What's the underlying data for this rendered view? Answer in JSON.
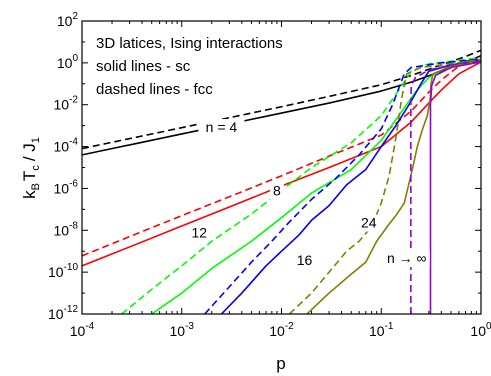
{
  "chart_data": {
    "type": "line",
    "xscale": "log",
    "yscale": "log",
    "xlim": [
      0.0001,
      1
    ],
    "ylim": [
      1e-12,
      100
    ],
    "xlabel": "p",
    "ylabel": {
      "k": "k",
      "B": "B",
      "T": "T",
      "c": "c",
      "slash_J": "/ J",
      "one": "1"
    },
    "x_ticks": [
      {
        "base": "10",
        "exp": "-4",
        "value": 0.0001
      },
      {
        "base": "10",
        "exp": "-3",
        "value": 0.001
      },
      {
        "base": "10",
        "exp": "-2",
        "value": 0.01
      },
      {
        "base": "10",
        "exp": "-1",
        "value": 0.1
      },
      {
        "base": "10",
        "exp": "0",
        "value": 1
      }
    ],
    "y_ticks": [
      {
        "base": "10",
        "exp": "2",
        "value": 100
      },
      {
        "base": "10",
        "exp": "0",
        "value": 1
      },
      {
        "base": "10",
        "exp": "-2",
        "value": 0.01
      },
      {
        "base": "10",
        "exp": "-4",
        "value": 0.0001
      },
      {
        "base": "10",
        "exp": "-6",
        "value": 1e-06
      },
      {
        "base": "10",
        "exp": "-8",
        "value": 1e-08
      },
      {
        "base": "10",
        "exp": "-10",
        "value": 1e-10
      },
      {
        "base": "10",
        "exp": "-12",
        "value": 1e-12
      }
    ],
    "annotation_lines": [
      "3D latices, Ising interactions",
      "solid lines - sc",
      "dashed lines - fcc"
    ],
    "grid": false,
    "series": [
      {
        "n": "4",
        "lattice": "sc",
        "color": "#000000",
        "dash": false,
        "points": [
          [
            0.0001,
            4e-05
          ],
          [
            0.0003,
            0.00012
          ],
          [
            0.001,
            0.0004
          ],
          [
            0.003,
            0.0012
          ],
          [
            0.01,
            0.004
          ],
          [
            0.03,
            0.012
          ],
          [
            0.1,
            0.045
          ],
          [
            0.2,
            0.12
          ],
          [
            0.4,
            0.4
          ],
          [
            0.7,
            1.1
          ],
          [
            1,
            2.2
          ]
        ]
      },
      {
        "n": "4",
        "lattice": "fcc",
        "color": "#000000",
        "dash": true,
        "points": [
          [
            0.0001,
            8e-05
          ],
          [
            0.0003,
            0.00024
          ],
          [
            0.001,
            0.0008
          ],
          [
            0.003,
            0.0024
          ],
          [
            0.01,
            0.008
          ],
          [
            0.03,
            0.025
          ],
          [
            0.1,
            0.09
          ],
          [
            0.2,
            0.25
          ],
          [
            0.4,
            0.8
          ],
          [
            0.7,
            2.0
          ],
          [
            1,
            4.0
          ]
        ]
      },
      {
        "n": "8",
        "lattice": "sc",
        "color": "#ff0000",
        "dash": false,
        "points": [
          [
            0.0001,
            2e-10
          ],
          [
            0.0003,
            1.6e-09
          ],
          [
            0.001,
            1.6e-08
          ],
          [
            0.003,
            1.3e-07
          ],
          [
            0.01,
            1.3e-06
          ],
          [
            0.03,
            1e-05
          ],
          [
            0.1,
            0.0001
          ],
          [
            0.2,
            0.0015
          ],
          [
            0.3,
            0.012
          ],
          [
            0.4,
            0.05
          ],
          [
            0.6,
            0.3
          ],
          [
            1,
            1.1
          ]
        ]
      },
      {
        "n": "8",
        "lattice": "fcc",
        "color": "#ff0000",
        "dash": true,
        "points": [
          [
            0.0001,
            6e-10
          ],
          [
            0.0003,
            5e-09
          ],
          [
            0.001,
            5e-08
          ],
          [
            0.003,
            4e-07
          ],
          [
            0.01,
            4e-06
          ],
          [
            0.03,
            3.5e-05
          ],
          [
            0.1,
            0.00035
          ],
          [
            0.2,
            0.005
          ],
          [
            0.3,
            0.04
          ],
          [
            0.4,
            0.15
          ],
          [
            0.6,
            0.7
          ],
          [
            1,
            2.0
          ]
        ]
      },
      {
        "n": "12",
        "lattice": "sc",
        "color": "#00ff00",
        "dash": false,
        "points": [
          [
            0.0005,
            1e-12
          ],
          [
            0.001,
            1e-11
          ],
          [
            0.002,
            1.5e-10
          ],
          [
            0.005,
            3e-09
          ],
          [
            0.01,
            4e-08
          ],
          [
            0.02,
            6e-07
          ],
          [
            0.05,
            8e-06
          ],
          [
            0.1,
            0.0002
          ],
          [
            0.15,
            0.003
          ],
          [
            0.22,
            0.04
          ],
          [
            0.3,
            0.2
          ],
          [
            0.5,
            0.8
          ],
          [
            1,
            1.5
          ]
        ]
      },
      {
        "n": "12",
        "lattice": "fcc",
        "color": "#00ff00",
        "dash": true,
        "points": [
          [
            0.00025,
            1e-12
          ],
          [
            0.0005,
            1.5e-11
          ],
          [
            0.001,
            2e-10
          ],
          [
            0.002,
            3e-09
          ],
          [
            0.005,
            6e-08
          ],
          [
            0.01,
            8e-07
          ],
          [
            0.02,
            1e-05
          ],
          [
            0.05,
            0.00015
          ],
          [
            0.1,
            0.003
          ],
          [
            0.15,
            0.05
          ],
          [
            0.2,
            0.4
          ],
          [
            0.3,
            0.9
          ],
          [
            1,
            1.8
          ]
        ]
      },
      {
        "n": "16",
        "lattice": "sc",
        "color": "#0000ff",
        "dash": false,
        "points": [
          [
            0.0025,
            1e-12
          ],
          [
            0.004,
            1e-11
          ],
          [
            0.007,
            2e-10
          ],
          [
            0.01,
            1e-09
          ],
          [
            0.015,
            6e-09
          ],
          [
            0.02,
            3e-08
          ],
          [
            0.03,
            1.5e-07
          ],
          [
            0.045,
            1.5e-06
          ],
          [
            0.07,
            8e-06
          ],
          [
            0.1,
            0.0001
          ],
          [
            0.14,
            0.001
          ],
          [
            0.2,
            0.015
          ],
          [
            0.25,
            0.1
          ],
          [
            0.3,
            0.4
          ],
          [
            0.5,
            0.8
          ],
          [
            1,
            1.3
          ]
        ]
      },
      {
        "n": "16",
        "lattice": "fcc",
        "color": "#0000ff",
        "dash": true,
        "points": [
          [
            0.0017,
            1e-12
          ],
          [
            0.003,
            2e-11
          ],
          [
            0.005,
            3e-10
          ],
          [
            0.008,
            3e-09
          ],
          [
            0.012,
            2.5e-08
          ],
          [
            0.02,
            3e-07
          ],
          [
            0.035,
            3e-06
          ],
          [
            0.06,
            4e-05
          ],
          [
            0.1,
            0.0007
          ],
          [
            0.13,
            0.01
          ],
          [
            0.17,
            0.3
          ],
          [
            0.2,
            0.6
          ],
          [
            0.4,
            1.0
          ],
          [
            1,
            1.5
          ]
        ]
      },
      {
        "n": "24",
        "lattice": "sc",
        "color": "#808000",
        "dash": false,
        "points": [
          [
            0.018,
            1e-12
          ],
          [
            0.03,
            1e-11
          ],
          [
            0.05,
            8e-11
          ],
          [
            0.07,
            3e-10
          ],
          [
            0.09,
            3e-09
          ],
          [
            0.12,
            2e-08
          ],
          [
            0.14,
            5e-08
          ],
          [
            0.17,
            2e-07
          ],
          [
            0.2,
            5e-06
          ],
          [
            0.23,
            0.0001
          ],
          [
            0.26,
            0.0007
          ],
          [
            0.29,
            0.003
          ],
          [
            0.31,
            0.02
          ],
          [
            0.315,
            0.1
          ],
          [
            0.33,
            0.3
          ],
          [
            0.5,
            0.7
          ],
          [
            1,
            1.2
          ]
        ]
      },
      {
        "n": "24",
        "lattice": "fcc",
        "color": "#808000",
        "dash": true,
        "points": [
          [
            0.012,
            1e-12
          ],
          [
            0.02,
            1e-11
          ],
          [
            0.03,
            1e-10
          ],
          [
            0.045,
            1e-09
          ],
          [
            0.06,
            3e-09
          ],
          [
            0.08,
            1.5e-08
          ],
          [
            0.1,
            2e-07
          ],
          [
            0.12,
            4e-06
          ],
          [
            0.14,
            0.00025
          ],
          [
            0.16,
            0.02
          ],
          [
            0.18,
            0.3
          ],
          [
            0.25,
            0.6
          ],
          [
            1,
            1.4
          ]
        ]
      },
      {
        "n": "∞",
        "lattice": "sc",
        "color": "#9400d3",
        "dash": false,
        "points": [
          [
            0.3116,
            1e-12
          ],
          [
            0.3116,
            0.01
          ],
          [
            0.32,
            0.08
          ],
          [
            0.35,
            0.25
          ],
          [
            0.5,
            0.6
          ],
          [
            1,
            1.1
          ]
        ]
      },
      {
        "n": "∞",
        "lattice": "fcc",
        "color": "#9400d3",
        "dash": true,
        "points": [
          [
            0.198,
            1e-12
          ],
          [
            0.198,
            0.01
          ],
          [
            0.2,
            0.08
          ],
          [
            0.22,
            0.2
          ],
          [
            0.3,
            0.45
          ],
          [
            0.5,
            0.8
          ],
          [
            1,
            1.2
          ]
        ]
      }
    ],
    "curve_labels": [
      {
        "text": "n = 4",
        "x": 0.0025,
        "y": 0.00055
      },
      {
        "text": "8",
        "x": 0.009,
        "y": 5e-07
      },
      {
        "text": "12",
        "x": 0.0015,
        "y": 5e-09
      },
      {
        "text": "16",
        "x": 0.017,
        "y": 2.5e-10
      },
      {
        "text": "24",
        "x": 0.075,
        "y": 1.5e-08
      },
      {
        "text": "n → ∞",
        "x": 0.18,
        "y": 3e-10
      }
    ]
  }
}
